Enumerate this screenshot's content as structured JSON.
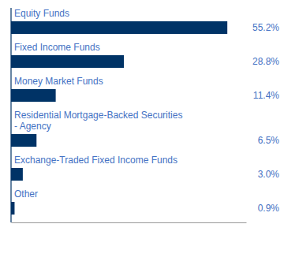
{
  "chart_data": {
    "type": "bar",
    "orientation": "horizontal",
    "categories": [
      "Equity Funds",
      "Fixed Income Funds",
      "Money Market Funds",
      "Residential Mortgage-Backed Securities\n- Agency",
      "Exchange-Traded Fixed Income Funds",
      "Other"
    ],
    "values": [
      55.2,
      28.8,
      11.4,
      6.5,
      3.0,
      0.9
    ],
    "value_labels": [
      "55.2%",
      "28.8%",
      "11.4%",
      "6.5%",
      "3.0%",
      "0.9%"
    ],
    "data_labels": true,
    "color": "#003366",
    "xlim": [
      0,
      60
    ],
    "tick_labels": false
  }
}
